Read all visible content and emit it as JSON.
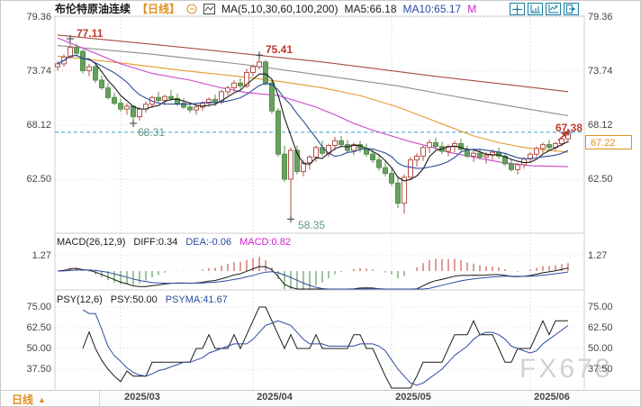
{
  "header": {
    "symbol": "布伦特原油连续",
    "period": "【日线】",
    "ma_params": "MA(5,10,30,60,100,200)",
    "ma5": "MA5:66.18",
    "ma10": "MA10:65.17",
    "ma30_truncated": "M"
  },
  "price_axis": {
    "labels": [
      "79.36",
      "73.74",
      "68.12",
      "62.50"
    ]
  },
  "annotations": {
    "swing_high_1": "77.11",
    "swing_high_2": "75.41",
    "swing_low_1": "68.31",
    "swing_low_2": "58.35",
    "latest_high": "67.38",
    "last_price": "67.22"
  },
  "macd_panel": {
    "title": "MACD(26,12,9)",
    "diff": "DIFF:0.34",
    "dea": "DEA:-0.06",
    "macd": "MACD:0.82",
    "axis_label": "1.27"
  },
  "psy_panel": {
    "title": "PSY(12,6)",
    "psy": "PSY:50.00",
    "psyma": "PSYMA:41.67",
    "axis_labels": [
      "75.00",
      "62.50",
      "50.00",
      "37.50"
    ]
  },
  "bottom_bar": {
    "period_tab": "日线",
    "arrow": "▲",
    "dates": [
      "2025/03",
      "2025/04",
      "2025/05",
      "2025/06"
    ]
  },
  "watermark": "FX678",
  "colors": {
    "up": "#b5524a",
    "down": "#67a05f",
    "down_stroke": "#55904b",
    "ma5": "#1a1a1a",
    "ma10": "#2b4ba0",
    "ma30": "#cc44cc",
    "ma60": "#e59a2c",
    "ma100": "#8c8c8c",
    "ma200": "#a84c3c",
    "dashed_level": "#3d9fd3",
    "hist_pos": "#c0392b",
    "hist_neg": "#3d8b3d",
    "annotation_red": "#c0392b",
    "annotation_green": "#5f997f",
    "accent_orange": "#e09020",
    "icon_teal": "#1f7f9f",
    "grid_pink": "#e7d5d5",
    "grid_gray": "#e0e0e0",
    "frame": "#cfcfcf",
    "marker": "#333333"
  },
  "chart_data": {
    "type": "candlestick",
    "instrument": "布伦特原油连续",
    "interval": "日线",
    "y_axis_ticks": [
      79.36,
      73.74,
      68.12,
      62.5
    ],
    "month_labels": [
      "2025/03",
      "2025/04",
      "2025/05",
      "2025/06"
    ],
    "month_start_indices": [
      10,
      31,
      53,
      75
    ],
    "marked_points": [
      {
        "index": 2,
        "price": 77.11,
        "kind": "high"
      },
      {
        "index": 32,
        "price": 75.41,
        "kind": "high"
      },
      {
        "index": 12,
        "price": 68.31,
        "kind": "low"
      },
      {
        "index": 37,
        "price": 58.35,
        "kind": "low"
      }
    ],
    "latest": {
      "high": 67.38,
      "close": 67.22
    },
    "ma_readings": {
      "ma5": 66.18,
      "ma10": 65.17
    },
    "macd": {
      "params": [
        26,
        12,
        9
      ],
      "diff": 0.34,
      "dea": -0.06,
      "macd": 0.82,
      "axis_max": 1.27
    },
    "psy": {
      "params": [
        12,
        6
      ],
      "psy": 50.0,
      "psyma": 41.67,
      "axis_ticks": [
        75.0,
        62.5,
        50.0,
        37.5
      ]
    },
    "overlay_ma": {
      "ma30": [
        [
          0,
          77.2
        ],
        [
          6,
          75.6
        ],
        [
          10,
          74.5
        ],
        [
          15,
          73.5
        ],
        [
          21,
          72.8
        ],
        [
          26,
          72.0
        ],
        [
          30,
          71.5
        ],
        [
          35,
          71.2
        ],
        [
          38,
          70.6
        ],
        [
          41,
          70.0
        ],
        [
          44,
          69.2
        ],
        [
          47,
          68.3
        ],
        [
          50,
          67.6
        ],
        [
          53,
          67.0
        ],
        [
          56,
          66.4
        ],
        [
          59,
          65.9
        ],
        [
          62,
          65.3
        ],
        [
          66,
          64.8
        ],
        [
          70,
          64.3
        ],
        [
          75,
          63.9
        ],
        [
          81,
          63.8
        ]
      ],
      "ma60": [
        [
          0,
          75.3
        ],
        [
          10,
          74.6
        ],
        [
          20,
          73.8
        ],
        [
          30,
          73.1
        ],
        [
          36,
          72.6
        ],
        [
          42,
          72.0
        ],
        [
          48,
          71.2
        ],
        [
          54,
          70.0
        ],
        [
          58,
          69.0
        ],
        [
          62,
          68.0
        ],
        [
          66,
          67.0
        ],
        [
          70,
          66.3
        ],
        [
          74,
          65.8
        ],
        [
          78,
          65.5
        ],
        [
          81,
          65.3
        ]
      ],
      "ma100": [
        [
          0,
          76.4
        ],
        [
          15,
          75.5
        ],
        [
          30,
          74.4
        ],
        [
          42,
          73.3
        ],
        [
          54,
          72.2
        ],
        [
          64,
          71.0
        ],
        [
          72,
          70.1
        ],
        [
          81,
          69.1
        ]
      ],
      "ma200": [
        [
          0,
          77.5
        ],
        [
          20,
          76.2
        ],
        [
          42,
          74.7
        ],
        [
          60,
          73.2
        ],
        [
          72,
          72.3
        ],
        [
          81,
          71.6
        ]
      ]
    },
    "ohlc": [
      [
        74.2,
        74.8,
        73.8,
        74.5
      ],
      [
        74.5,
        75.5,
        74.2,
        75.2
      ],
      [
        75.2,
        77.11,
        75.0,
        76.2
      ],
      [
        76.2,
        76.6,
        75.3,
        75.6
      ],
      [
        75.8,
        76.0,
        73.5,
        73.8
      ],
      [
        73.8,
        74.5,
        73.2,
        74.2
      ],
      [
        74.2,
        74.4,
        72.5,
        72.8
      ],
      [
        72.8,
        73.3,
        71.8,
        72.0
      ],
      [
        72.0,
        72.5,
        70.8,
        71.0
      ],
      [
        71.0,
        71.5,
        70.2,
        70.4
      ],
      [
        70.4,
        70.9,
        69.5,
        69.8
      ],
      [
        69.8,
        70.4,
        69.2,
        70.1
      ],
      [
        70.1,
        70.2,
        68.31,
        69.0
      ],
      [
        69.0,
        70.0,
        68.6,
        69.8
      ],
      [
        69.8,
        70.6,
        69.4,
        70.3
      ],
      [
        70.3,
        71.2,
        69.9,
        71.0
      ],
      [
        71.0,
        71.6,
        70.4,
        70.7
      ],
      [
        70.7,
        71.3,
        70.2,
        71.1
      ],
      [
        71.1,
        71.8,
        70.6,
        70.9
      ],
      [
        70.9,
        71.4,
        70.1,
        70.4
      ],
      [
        70.4,
        70.9,
        69.8,
        70.0
      ],
      [
        70.0,
        70.5,
        69.4,
        69.7
      ],
      [
        69.7,
        70.2,
        69.2,
        70.0
      ],
      [
        70.0,
        70.6,
        69.6,
        70.4
      ],
      [
        70.4,
        71.0,
        70.0,
        70.8
      ],
      [
        70.8,
        71.3,
        70.1,
        70.5
      ],
      [
        70.5,
        71.8,
        70.3,
        71.6
      ],
      [
        71.6,
        72.2,
        71.2,
        72.0
      ],
      [
        72.0,
        72.8,
        71.6,
        72.5
      ],
      [
        72.5,
        73.0,
        71.9,
        72.2
      ],
      [
        72.2,
        74.0,
        72.0,
        73.6
      ],
      [
        73.6,
        74.4,
        73.2,
        74.2
      ],
      [
        74.2,
        75.41,
        73.9,
        74.7
      ],
      [
        74.7,
        74.9,
        72.2,
        72.5
      ],
      [
        72.5,
        72.8,
        69.3,
        69.6
      ],
      [
        69.6,
        69.9,
        64.8,
        65.1
      ],
      [
        65.1,
        66.0,
        62.2,
        62.5
      ],
      [
        62.5,
        65.8,
        58.35,
        65.5
      ],
      [
        65.5,
        66.0,
        63.0,
        63.3
      ],
      [
        63.3,
        64.5,
        62.8,
        64.2
      ],
      [
        64.2,
        65.0,
        63.5,
        64.8
      ],
      [
        64.8,
        66.0,
        64.3,
        65.8
      ],
      [
        65.8,
        66.5,
        64.9,
        65.2
      ],
      [
        65.2,
        66.2,
        64.8,
        66.0
      ],
      [
        66.0,
        66.9,
        65.5,
        66.5
      ],
      [
        66.5,
        67.0,
        65.8,
        66.1
      ],
      [
        66.1,
        66.6,
        65.2,
        65.5
      ],
      [
        65.5,
        66.3,
        65.0,
        66.1
      ],
      [
        66.1,
        66.5,
        65.3,
        65.7
      ],
      [
        65.7,
        66.2,
        64.8,
        65.1
      ],
      [
        65.1,
        65.6,
        64.2,
        64.5
      ],
      [
        64.5,
        65.0,
        63.4,
        63.7
      ],
      [
        63.7,
        64.3,
        62.8,
        63.1
      ],
      [
        63.1,
        63.6,
        61.8,
        62.1
      ],
      [
        62.1,
        62.8,
        59.5,
        60.0
      ],
      [
        60.0,
        63.0,
        58.9,
        62.7
      ],
      [
        62.7,
        64.8,
        62.4,
        64.5
      ],
      [
        64.5,
        65.2,
        63.8,
        64.9
      ],
      [
        64.9,
        66.0,
        64.4,
        65.8
      ],
      [
        65.8,
        66.6,
        65.2,
        66.3
      ],
      [
        66.3,
        66.8,
        65.6,
        65.9
      ],
      [
        65.9,
        66.4,
        65.1,
        65.4
      ],
      [
        65.4,
        66.1,
        64.9,
        65.9
      ],
      [
        65.9,
        66.5,
        65.3,
        66.2
      ],
      [
        66.2,
        66.7,
        65.4,
        65.6
      ],
      [
        65.6,
        66.0,
        64.7,
        64.9
      ],
      [
        64.9,
        65.5,
        64.3,
        65.2
      ],
      [
        65.2,
        65.7,
        64.5,
        64.8
      ],
      [
        64.8,
        65.3,
        64.1,
        65.0
      ],
      [
        65.0,
        65.6,
        64.5,
        65.3
      ],
      [
        65.3,
        65.8,
        64.6,
        64.9
      ],
      [
        64.9,
        65.2,
        63.9,
        64.1
      ],
      [
        64.1,
        64.6,
        63.3,
        63.5
      ],
      [
        63.5,
        64.2,
        63.0,
        64.0
      ],
      [
        64.0,
        64.8,
        63.6,
        64.6
      ],
      [
        64.6,
        65.3,
        64.2,
        65.1
      ],
      [
        65.1,
        65.9,
        64.8,
        65.7
      ],
      [
        65.7,
        66.3,
        65.2,
        66.1
      ],
      [
        66.1,
        66.6,
        65.5,
        65.8
      ],
      [
        65.8,
        66.4,
        65.4,
        66.2
      ],
      [
        66.2,
        66.9,
        65.9,
        66.7
      ],
      [
        66.7,
        67.38,
        66.3,
        67.22
      ]
    ]
  }
}
